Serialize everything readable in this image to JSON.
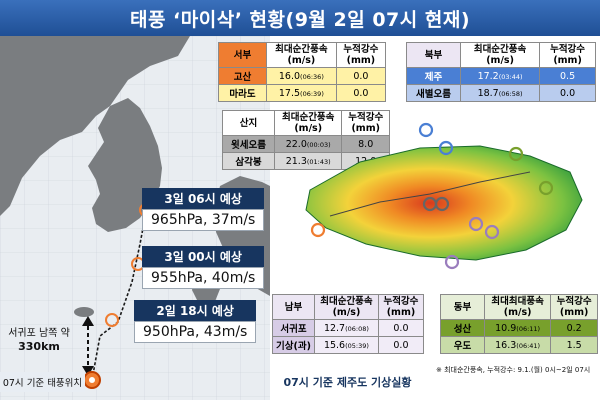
{
  "title": "태풍 ‘마이삭’ 현황(9월 2일 07시 현재)",
  "forecasts": [
    {
      "time": "3일 06시 예상",
      "value": "965hPa, 37m/s"
    },
    {
      "time": "3일 00시 예상",
      "value": "955hPa, 40m/s"
    },
    {
      "time": "2일 18시 예상",
      "value": "950hPa, 43m/s"
    }
  ],
  "distance_label": {
    "line1": "서귀포 남쪽 약",
    "line2": "330km"
  },
  "current_position_label": "07시 기준 태풍위치",
  "caption": "07시 기준 제주도 기상실황",
  "note": "※ 최대순간풍속, 누적강수: 9.1.(월) 0시~2일 07시",
  "colors": {
    "title_bg": "#2a5fa8",
    "orange": "#ef7d31",
    "yellow": "#fff2a6",
    "grey": "#a9a9a9",
    "light_grey": "#d9d9d9",
    "blue": "#4a7fd4",
    "light_blue": "#b9ccee",
    "purple_header": "#ece6f3",
    "purple_row": "#d7cce6",
    "green": "#78a02c",
    "light_green": "#c8dca8"
  },
  "tables": {
    "west": {
      "headers": [
        "서부",
        "최대순간풍속\n(m/s)",
        "누적강수\n(mm)"
      ],
      "rows": [
        {
          "name": "고산",
          "wind": "16.0",
          "time": "(06:36)",
          "rain": "0.0"
        },
        {
          "name": "마라도",
          "wind": "17.5",
          "time": "(06:39)",
          "rain": "0.0"
        }
      ]
    },
    "mountain": {
      "headers": [
        "산지",
        "최대순간풍속\n(m/s)",
        "누적강수\n(mm)"
      ],
      "rows": [
        {
          "name": "윗세오름",
          "wind": "22.0",
          "time": "(00:03)",
          "rain": "8.0"
        },
        {
          "name": "삼각봉",
          "wind": "21.3",
          "time": "(01:43)",
          "rain": "12.0"
        }
      ]
    },
    "north": {
      "headers": [
        "북부",
        "최대순간풍속\n(m/s)",
        "누적강수\n(mm)"
      ],
      "rows": [
        {
          "name": "제주",
          "wind": "17.2",
          "time": "(03:44)",
          "rain": "0.5"
        },
        {
          "name": "새별오름",
          "wind": "18.7",
          "time": "(06:58)",
          "rain": "0.0"
        }
      ]
    },
    "south": {
      "headers": [
        "남부",
        "최대순간풍속\n(m/s)",
        "누적강수\n(mm)"
      ],
      "rows": [
        {
          "name": "서귀포",
          "wind": "12.7",
          "time": "(06:08)",
          "rain": "0.0"
        },
        {
          "name": "기상(과)",
          "wind": "15.6",
          "time": "(05:39)",
          "rain": "0.0"
        }
      ]
    },
    "east": {
      "headers": [
        "동부",
        "최대최대풍속\n(m/s)",
        "누적강수\n(mm)"
      ],
      "rows": [
        {
          "name": "성산",
          "wind": "10.9",
          "time": "(06:11)",
          "rain": "0.2"
        },
        {
          "name": "우도",
          "wind": "16.3",
          "time": "(06:41)",
          "rain": "1.5"
        }
      ]
    }
  }
}
